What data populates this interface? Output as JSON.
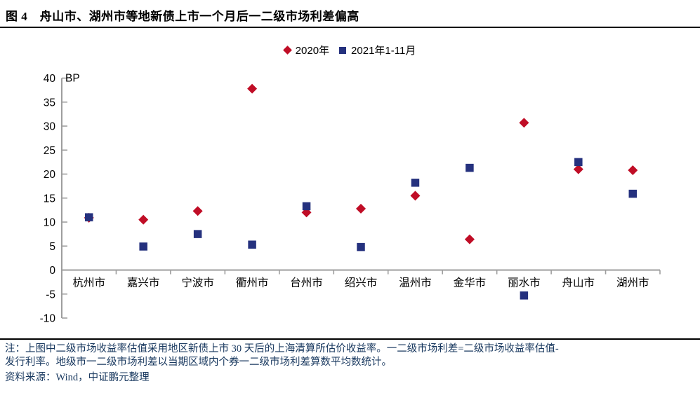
{
  "title": "图 4　舟山市、湖州市等地新债上市一个月后一二级市场利差偏高",
  "chart_data": {
    "type": "scatter",
    "title": "图 4　舟山市、湖州市等地新债上市一个月后一二级市场利差偏高",
    "ylabel": "BP",
    "xlabel": "",
    "ylim": [
      -10,
      40
    ],
    "ytick_step": 5,
    "grid": false,
    "legend_position": "top-center",
    "categories": [
      "杭州市",
      "嘉兴市",
      "宁波市",
      "衢州市",
      "台州市",
      "绍兴市",
      "温州市",
      "金华市",
      "丽水市",
      "舟山市",
      "湖州市"
    ],
    "series": [
      {
        "name": "2020年",
        "marker": "diamond",
        "color": "#C00D26",
        "values": [
          10.9,
          10.5,
          12.3,
          37.8,
          12.0,
          12.8,
          15.5,
          6.4,
          30.7,
          21.0,
          20.8
        ]
      },
      {
        "name": "2021年1-11月",
        "marker": "square",
        "color": "#25317E",
        "values": [
          11.0,
          4.9,
          7.5,
          5.3,
          13.3,
          4.8,
          18.2,
          21.3,
          -5.3,
          22.5,
          15.9
        ]
      }
    ]
  },
  "notes": {
    "note_line1": "注：上图中二级市场收益率估值采用地区新债上市 30 天后的上海清算所估价收益率。一二级市场利差=二级市场收益率估值-",
    "note_line2": "发行利率。地级市一二级市场利差以当期区域内个券一二级市场利差算数平均数统计。",
    "source": "资料来源：Wind，中证鹏元整理"
  },
  "colors": {
    "axis": "#9E9E9E",
    "tick_label": "#000000",
    "note_text": "#17375E",
    "rule": "#000000"
  }
}
